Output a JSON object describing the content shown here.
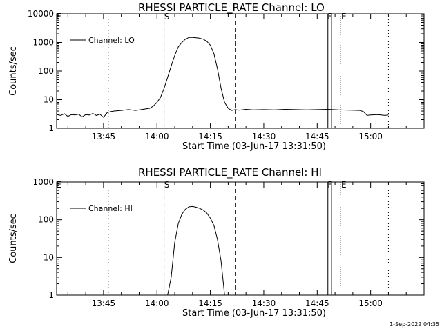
{
  "chart_data": [
    {
      "type": "line",
      "title": "RHESSI PARTICLE_RATE Channel: LO",
      "xlabel": "Start Time (03-Jun-17 13:31:50)",
      "ylabel": "Counts/sec",
      "yscale": "log",
      "ylim": [
        1,
        10000
      ],
      "xlim": [
        "13:31:50",
        "15:15:00"
      ],
      "xticks": [
        "13:45",
        "14:00",
        "14:15",
        "14:30",
        "14:45",
        "15:00"
      ],
      "yticks": [
        "1",
        "10",
        "100",
        "1000",
        "10000"
      ],
      "legend": {
        "placement": "top-left",
        "entries": [
          "Channel: LO"
        ]
      },
      "series": [
        {
          "name": "Channel: LO",
          "x": [
            "13:31:50",
            "13:33:00",
            "13:34:00",
            "13:35:00",
            "13:36:00",
            "13:37:00",
            "13:38:00",
            "13:39:00",
            "13:40:00",
            "13:41:00",
            "13:42:00",
            "13:43:00",
            "13:44:00",
            "13:45:00",
            "13:46:00",
            "13:47:00",
            "13:48:00",
            "13:50:00",
            "13:52:00",
            "13:54:00",
            "13:56:00",
            "13:58:00",
            "13:59:00",
            "14:00:00",
            "14:01:00",
            "14:02:00",
            "14:03:00",
            "14:04:00",
            "14:05:00",
            "14:06:00",
            "14:07:00",
            "14:08:00",
            "14:09:00",
            "14:10:00",
            "14:11:00",
            "14:12:00",
            "14:13:00",
            "14:14:00",
            "14:15:00",
            "14:16:00",
            "14:17:00",
            "14:18:00",
            "14:19:00",
            "14:20:00",
            "14:21:00",
            "14:22:00",
            "14:23:00",
            "14:25:00",
            "14:27:00",
            "14:30:00",
            "14:33:00",
            "14:36:00",
            "14:39:00",
            "14:42:00",
            "14:45:00",
            "14:48:00",
            "14:51:00",
            "14:54:00",
            "14:57:00",
            "14:58:00",
            "14:59:00",
            "15:00:00",
            "15:02:00",
            "15:04:00",
            "15:05:00"
          ],
          "values": [
            3,
            2.8,
            3.2,
            2.6,
            3,
            2.9,
            3.1,
            2.5,
            3,
            2.9,
            3.3,
            2.8,
            3.1,
            2.4,
            3.5,
            3.8,
            4,
            4.2,
            4.5,
            4.2,
            4.6,
            5,
            6,
            8,
            12,
            25,
            60,
            150,
            350,
            700,
            1000,
            1300,
            1500,
            1500,
            1450,
            1400,
            1300,
            1100,
            800,
            400,
            120,
            25,
            8,
            5,
            4.2,
            4.5,
            4.3,
            4.6,
            4.4,
            4.5,
            4.4,
            4.6,
            4.5,
            4.4,
            4.5,
            4.6,
            4.4,
            4.3,
            4.2,
            3.8,
            2.8,
            2.9,
            3,
            2.8,
            2.9
          ]
        }
      ],
      "annotations": [
        "S",
        "F",
        "E"
      ]
    },
    {
      "type": "line",
      "title": "RHESSI PARTICLE_RATE Channel: HI",
      "xlabel": "Start Time (03-Jun-17 13:31:50)",
      "ylabel": "Counts/sec",
      "yscale": "log",
      "ylim": [
        1,
        1000
      ],
      "xlim": [
        "13:31:50",
        "15:15:00"
      ],
      "xticks": [
        "13:45",
        "14:00",
        "14:15",
        "14:30",
        "14:45",
        "15:00"
      ],
      "yticks": [
        "1",
        "10",
        "100",
        "1000"
      ],
      "legend": {
        "placement": "top-left",
        "entries": [
          "Channel: HI"
        ]
      },
      "series": [
        {
          "name": "Channel: HI",
          "x": [
            "14:03:00",
            "14:04:00",
            "14:05:00",
            "14:06:00",
            "14:07:00",
            "14:08:00",
            "14:09:00",
            "14:10:00",
            "14:11:00",
            "14:12:00",
            "14:13:00",
            "14:14:00",
            "14:15:00",
            "14:16:00",
            "14:17:00",
            "14:18:00",
            "14:19:00"
          ],
          "values": [
            1,
            3,
            25,
            80,
            140,
            190,
            220,
            225,
            215,
            200,
            180,
            150,
            110,
            70,
            30,
            8,
            1
          ]
        }
      ],
      "annotations": [
        "S",
        "F",
        "E"
      ]
    }
  ],
  "footer": "1-Sep-2022 04:35"
}
